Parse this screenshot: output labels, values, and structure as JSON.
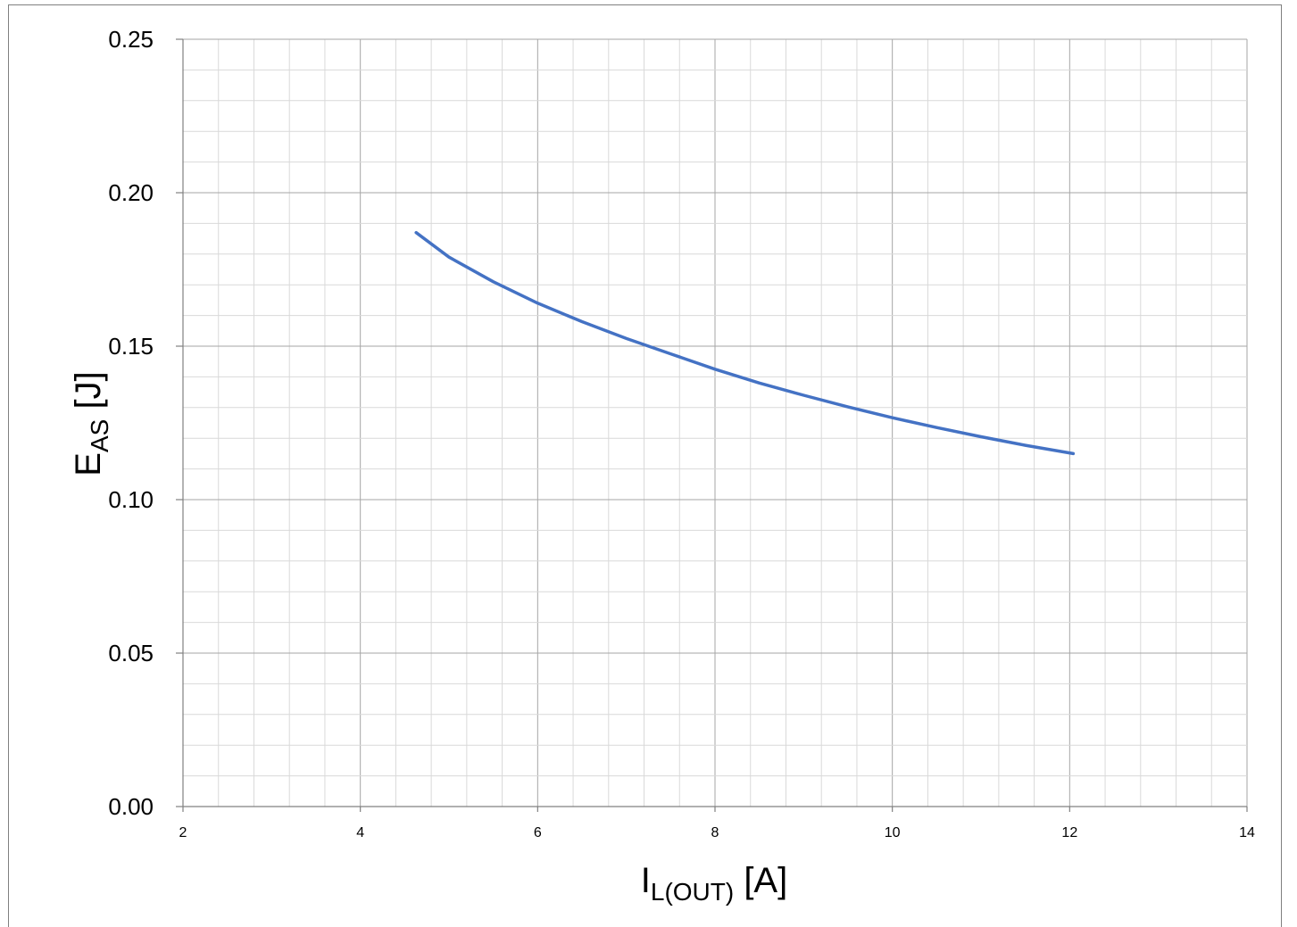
{
  "chart_data": {
    "type": "line",
    "title": "",
    "xlabel": {
      "main": "I",
      "sub": "L(OUT)",
      "unit": " [A]"
    },
    "ylabel": {
      "main": "E",
      "sub": "AS",
      "unit": " [J]"
    },
    "xlim": [
      2,
      14
    ],
    "ylim": [
      0,
      0.25
    ],
    "x_ticks": [
      "2",
      "4",
      "6",
      "8",
      "10",
      "12",
      "14"
    ],
    "y_ticks": [
      "0.00",
      "0.05",
      "0.10",
      "0.15",
      "0.20",
      "0.25"
    ],
    "grid": true,
    "series": [
      {
        "color": "#4472c4",
        "x": [
          4.63,
          5.0,
          5.5,
          6.0,
          6.5,
          7.0,
          7.5,
          8.0,
          8.5,
          9.0,
          9.5,
          10.0,
          10.5,
          11.0,
          11.5,
          12.04
        ],
        "y": [
          0.187,
          0.179,
          0.171,
          0.164,
          0.158,
          0.1525,
          0.1475,
          0.1425,
          0.138,
          0.134,
          0.1302,
          0.1267,
          0.1235,
          0.1205,
          0.1177,
          0.115
        ]
      }
    ]
  }
}
